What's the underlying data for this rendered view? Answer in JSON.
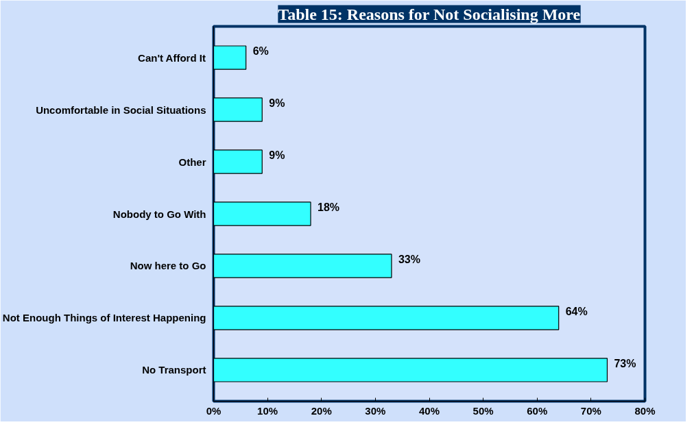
{
  "chart_data": {
    "type": "bar",
    "orientation": "horizontal",
    "title": "Table 15: Reasons for Not Socialising More",
    "categories": [
      "Can't Afford It",
      "Uncomfortable in Social Situations",
      "Other",
      "Nobody to Go With",
      "Now here to Go",
      "Not Enough Things of Interest Happening",
      "No Transport"
    ],
    "values": [
      6,
      9,
      9,
      18,
      33,
      64,
      73
    ],
    "value_labels": [
      "6%",
      "9%",
      "9%",
      "18%",
      "33%",
      "64%",
      "73%"
    ],
    "color": "#33ffff",
    "xlim": [
      0,
      80
    ],
    "xticks": [
      {
        "value": 0,
        "label": "0%"
      },
      {
        "value": 10,
        "label": "10%"
      },
      {
        "value": 20,
        "label": "20%"
      },
      {
        "value": 30,
        "label": "30%"
      },
      {
        "value": 40,
        "label": "40%"
      },
      {
        "value": 50,
        "label": "50%"
      },
      {
        "value": 60,
        "label": "60%"
      },
      {
        "value": 70,
        "label": "70%"
      },
      {
        "value": 80,
        "label": "80%"
      }
    ]
  }
}
